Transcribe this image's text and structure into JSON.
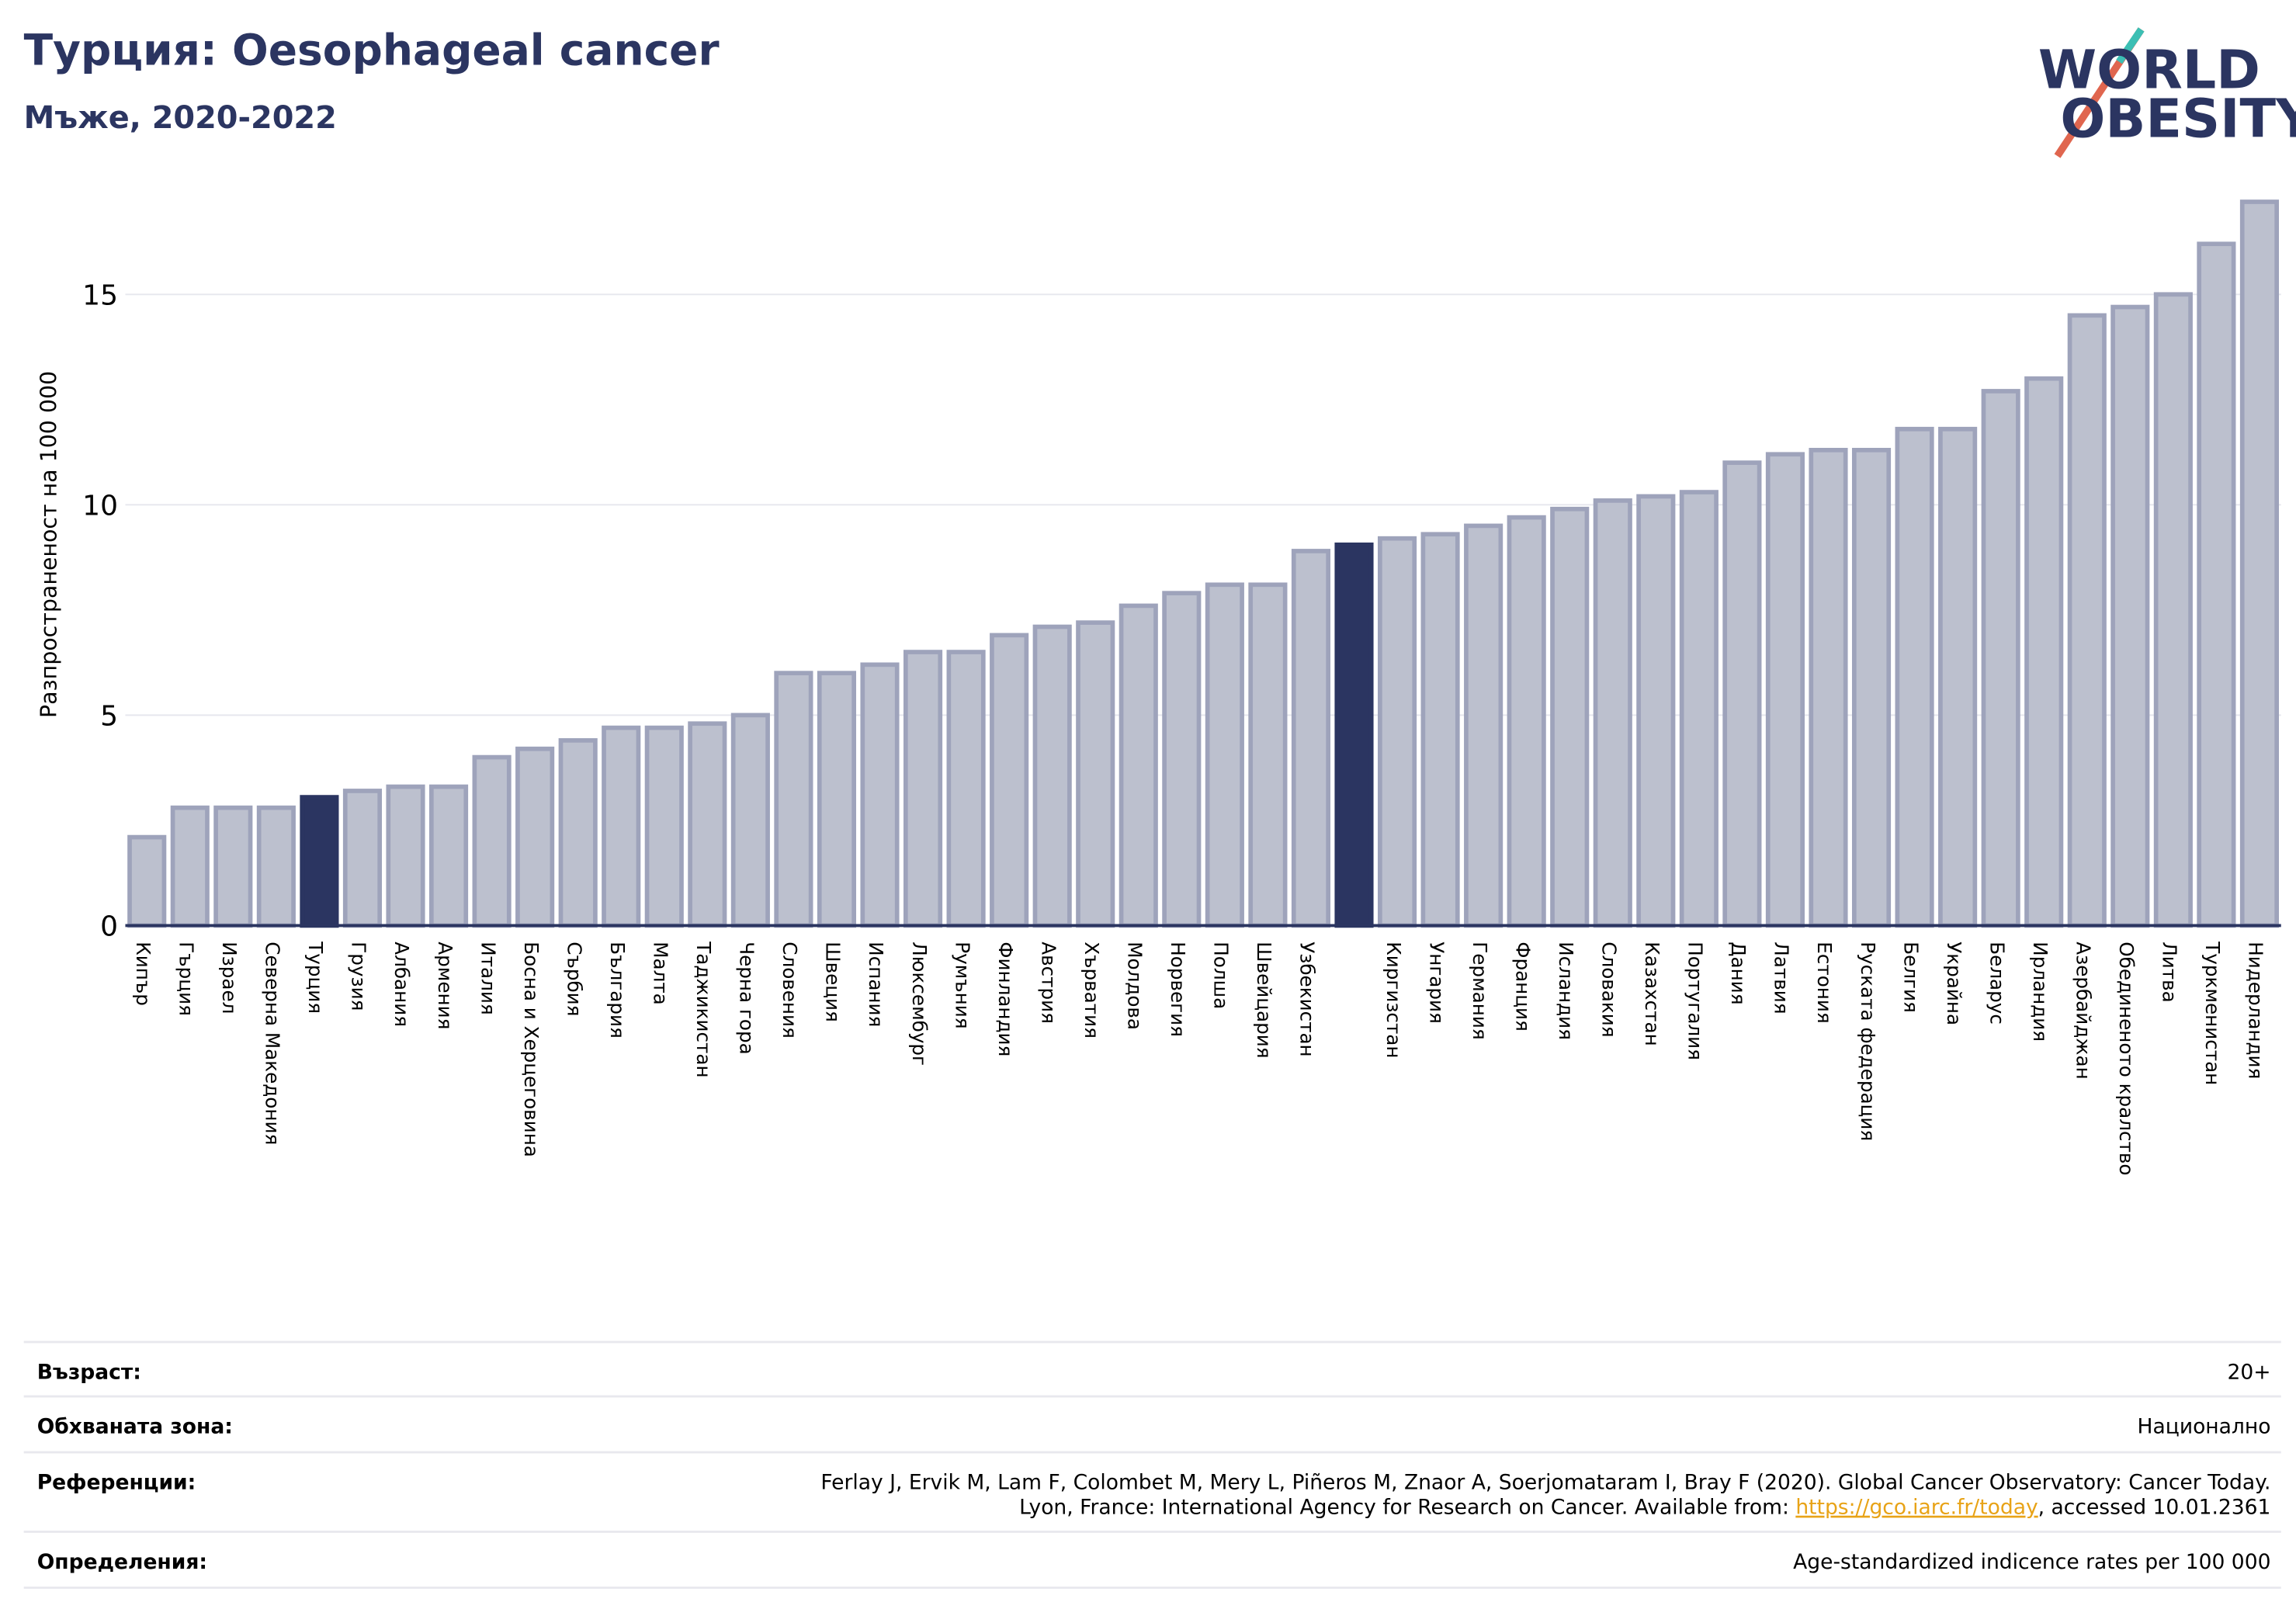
{
  "chart_data": {
    "type": "bar",
    "title": "Турция: Oesophageal cancer",
    "subtitle": "Мъже, 2020-2022",
    "logo": [
      "WORLD",
      "OBESITY"
    ],
    "y_label": "Разпространеност  на 100 000",
    "categories": [
      "Кипър",
      "Гърция",
      "Израел",
      "Северна Македония",
      "Турция",
      "Грузия",
      "Албания",
      "Армения",
      "Италия",
      "Босна и Херцеговина",
      "Сърбия",
      "България",
      "Малта",
      "Таджикистан",
      "Черна гора",
      "Словения",
      "Швеция",
      "Испания",
      "Люксембург",
      "Румъния",
      "Финландия",
      "Австрия",
      "Хърватия",
      "Молдова",
      "Норвегия",
      "Полша",
      "Швейцария",
      "Узбекистан",
      null,
      "Киргизстан",
      "Унгария",
      "Германия",
      "Франция",
      "Исландия",
      "Словакия",
      "Казахстан",
      "Португалия",
      "Дания",
      "Латвия",
      "Естония",
      "Руската федерация",
      "Белгия",
      "Украйна",
      "Беларус",
      "Ирландия",
      "Азербайджан",
      "Обединеното кралство",
      "Литва",
      "Туркменистан",
      "Нидерландия"
    ],
    "values": [
      2.1,
      2.8,
      2.8,
      2.8,
      3.05,
      3.2,
      3.3,
      3.3,
      4.0,
      4.2,
      4.4,
      4.7,
      4.7,
      4.8,
      5.0,
      6.0,
      6.0,
      6.2,
      6.5,
      6.5,
      6.9,
      7.1,
      7.2,
      7.6,
      7.9,
      8.1,
      8.1,
      8.9,
      9.05,
      9.2,
      9.3,
      9.5,
      9.7,
      9.9,
      10.1,
      10.2,
      10.3,
      11.0,
      11.2,
      11.3,
      11.3,
      11.8,
      11.8,
      12.7,
      13.0,
      14.5,
      14.7,
      15.0,
      16.2,
      17.2
    ],
    "colors": [
      "#bcc0ce",
      "#bcc0ce",
      "#bcc0ce",
      "#bcc0ce",
      "#2b3561",
      "#bcc0ce",
      "#bcc0ce",
      "#bcc0ce",
      "#bcc0ce",
      "#bcc0ce",
      "#bcc0ce",
      "#bcc0ce",
      "#bcc0ce",
      "#bcc0ce",
      "#bcc0ce",
      "#bcc0ce",
      "#bcc0ce",
      "#bcc0ce",
      "#bcc0ce",
      "#bcc0ce",
      "#bcc0ce",
      "#bcc0ce",
      "#bcc0ce",
      "#bcc0ce",
      "#bcc0ce",
      "#bcc0ce",
      "#bcc0ce",
      "#bcc0ce",
      "#2b3561",
      "#bcc0ce",
      "#bcc0ce",
      "#bcc0ce",
      "#bcc0ce",
      "#bcc0ce",
      "#bcc0ce",
      "#bcc0ce",
      "#bcc0ce",
      "#bcc0ce",
      "#bcc0ce",
      "#bcc0ce",
      "#bcc0ce",
      "#bcc0ce",
      "#bcc0ce",
      "#bcc0ce",
      "#bcc0ce",
      "#bcc0ce",
      "#bcc0ce",
      "#bcc0ce",
      "#bcc0ce",
      "#bcc0ce"
    ],
    "ylim": [
      0,
      17.8
    ],
    "yticks": [
      0,
      5,
      10,
      15
    ],
    "grid": true
  },
  "info": [
    {
      "label": "Възраст:",
      "value": [
        "20+"
      ]
    },
    {
      "label": "Обхваната зона:",
      "value": [
        "Национално"
      ]
    },
    {
      "label": "Референции:",
      "value": [
        "Ferlay J, Ervik M, Lam F, Colombet M, Mery L, Piñeros M, Znaor A, Soerjomataram I, Bray F (2020). Global Cancer Observatory: Cancer Today.",
        "Lyon, France: International Agency for Research on Cancer. Available from: "
      ],
      "link": "https://gco.iarc.fr/today",
      "after_link": ", accessed 10.01.2361"
    },
    {
      "label": "Определения:",
      "value": [
        "Age-standardized indicence rates per 100 000"
      ]
    }
  ]
}
